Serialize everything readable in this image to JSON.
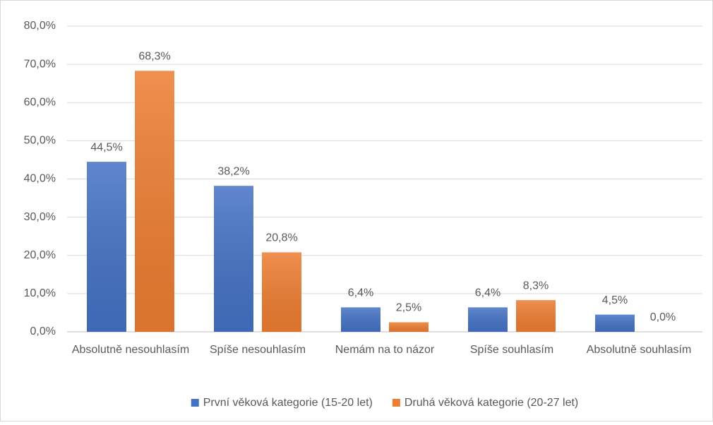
{
  "chart_data": {
    "type": "bar",
    "categories": [
      "Absolutně nesouhlasím",
      "Spíše nesouhlasím",
      "Nemám na to názor",
      "Spíše souhlasím",
      "Absolutně souhlasím"
    ],
    "series": [
      {
        "name": "První věková kategorie (15-20 let)",
        "color": "#4472c4",
        "values": [
          44.5,
          38.2,
          6.4,
          6.4,
          4.5
        ],
        "value_labels": [
          "44,5%",
          "38,2%",
          "6,4%",
          "6,4%",
          "4,5%"
        ]
      },
      {
        "name": "Druhá věková kategorie (20-27 let)",
        "color": "#ed7d31",
        "values": [
          68.3,
          20.8,
          2.5,
          8.3,
          0.0
        ],
        "value_labels": [
          "68,3%",
          "20,8%",
          "2,5%",
          "8,3%",
          "0,0%"
        ]
      }
    ],
    "ylim": [
      0,
      80
    ],
    "yticks": [
      {
        "value": 0,
        "label": "0,0%"
      },
      {
        "value": 10,
        "label": "10,0%"
      },
      {
        "value": 20,
        "label": "20,0%"
      },
      {
        "value": 30,
        "label": "30,0%"
      },
      {
        "value": 40,
        "label": "40,0%"
      },
      {
        "value": 50,
        "label": "50,0%"
      },
      {
        "value": 60,
        "label": "60,0%"
      },
      {
        "value": 70,
        "label": "70,0%"
      },
      {
        "value": 80,
        "label": "80,0%"
      }
    ],
    "grid": true,
    "legend": "bottom"
  }
}
